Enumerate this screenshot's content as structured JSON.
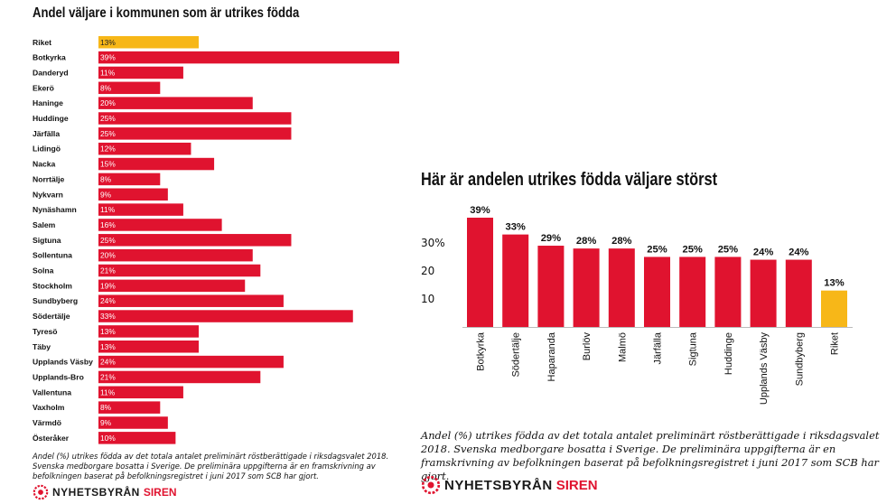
{
  "colors": {
    "bar": "#e0132f",
    "highlight": "#f7b718",
    "text": "#111111"
  },
  "left_title": "Andel väljare i kommunen som är utrikes födda",
  "right_title": "Här är andelen utrikes födda väljare störst",
  "left_caption": "Andel (%) utrikes födda av det totala antalet preliminärt röstberättigade i riksdagsvalet 2018. Svenska medborgare bosatta i Sverige. De preliminära uppgifterna är en framskrivning av befolkningen baserat på befolkningsregistret i juni 2017 som SCB har gjort.",
  "right_caption": "Andel (%) utrikes födda av det totala antalet preliminärt röstberättigade i riksdagsvalet 2018. Svenska medborgare bosatta i Sverige. De preliminära uppgifterna är en framskrivning av befolkningen baserat på befolkningsregistret i juni 2017 som SCB har gjort.",
  "logo": {
    "brand": "NYHETSBYRÅN",
    "accent": "SIREN",
    "icon": "siren-logo-icon"
  },
  "chart_data": [
    {
      "type": "bar",
      "orientation": "horizontal",
      "title": "Andel väljare i kommunen som är utrikes födda",
      "unit": "%",
      "highlight_category": "Riket",
      "categories": [
        "Riket",
        "Botkyrka",
        "Danderyd",
        "Ekerö",
        "Haninge",
        "Huddinge",
        "Järfälla",
        "Lidingö",
        "Nacka",
        "Norrtälje",
        "Nykvarn",
        "Nynäshamn",
        "Salem",
        "Sigtuna",
        "Sollentuna",
        "Solna",
        "Stockholm",
        "Sundbyberg",
        "Södertälje",
        "Tyresö",
        "Täby",
        "Upplands Väsby",
        "Upplands-Bro",
        "Vallentuna",
        "Vaxholm",
        "Värmdö",
        "Österåker"
      ],
      "values": [
        13,
        39,
        11,
        8,
        20,
        25,
        25,
        12,
        15,
        8,
        9,
        11,
        16,
        25,
        20,
        21,
        19,
        24,
        33,
        13,
        13,
        24,
        21,
        11,
        8,
        9,
        10
      ],
      "labels": [
        "13%",
        "39%",
        "11%",
        "8%",
        "20%",
        "25%",
        "25%",
        "12%",
        "15%",
        "8%",
        "9%",
        "11%",
        "16%",
        "25%",
        "20%",
        "21%",
        "19%",
        "24%",
        "33%",
        "13%",
        "13%",
        "24%",
        "21%",
        "11%",
        "8%",
        "9%",
        "10%"
      ],
      "xlim": [
        0,
        39
      ]
    },
    {
      "type": "bar",
      "orientation": "vertical",
      "title": "Här är andelen utrikes födda väljare störst",
      "unit": "%",
      "highlight_category": "Riket",
      "categories": [
        "Botkyrka",
        "Södertälje",
        "Haparanda",
        "Burlöv",
        "Malmö",
        "Järfälla",
        "Sigtuna",
        "Huddinge",
        "Upplands Väsby",
        "Sundbyberg",
        "Riket"
      ],
      "values": [
        39,
        33,
        29,
        28,
        28,
        25,
        25,
        25,
        24,
        24,
        13
      ],
      "labels": [
        "39%",
        "33%",
        "29%",
        "28%",
        "28%",
        "25%",
        "25%",
        "25%",
        "24%",
        "24%",
        "13%"
      ],
      "yticks": [
        10,
        20,
        30
      ],
      "ytick_labels": [
        "10",
        "20",
        "30%"
      ],
      "ylim": [
        0,
        39
      ],
      "grid": false
    }
  ]
}
